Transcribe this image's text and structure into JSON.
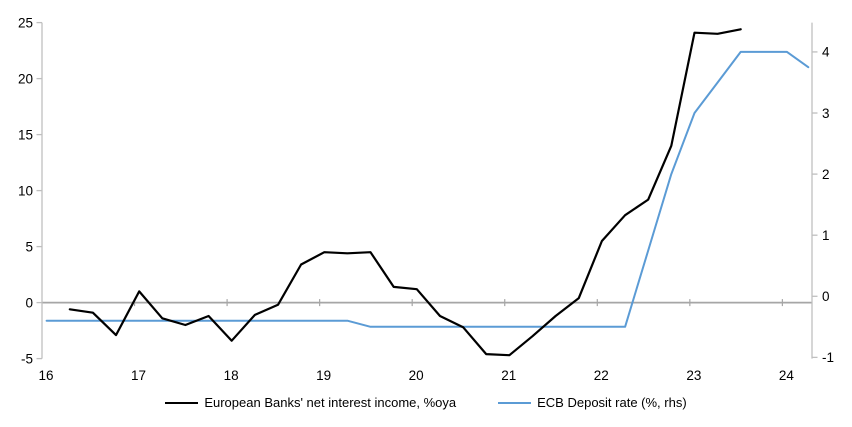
{
  "chart_data": {
    "type": "line",
    "title": "",
    "x_axis": {
      "tick_labels": [
        "16",
        "17",
        "18",
        "19",
        "20",
        "21",
        "22",
        "23",
        "24"
      ],
      "tick_values": [
        16,
        17,
        18,
        19,
        20,
        21,
        22,
        23,
        24
      ],
      "range": [
        16,
        24.32
      ],
      "ticks_on_zero_line": true
    },
    "left_axis": {
      "tick_labels": [
        "-5",
        "0",
        "5",
        "10",
        "15",
        "20",
        "25"
      ],
      "tick_values": [
        -5,
        0,
        5,
        10,
        15,
        20,
        25
      ],
      "range": [
        -5,
        25
      ]
    },
    "right_axis": {
      "tick_labels": [
        "-1",
        "0",
        "1",
        "2",
        "3",
        "4"
      ],
      "tick_values": [
        -1,
        0,
        1,
        2,
        3,
        4
      ],
      "range": [
        -1.02,
        4.48
      ]
    },
    "grid": "zero-line-only",
    "legend_position": "bottom-center",
    "series": [
      {
        "name": "European Banks' net interest income, %oya",
        "axis": "left",
        "color": "#000000",
        "stroke_width": 2.2,
        "points": [
          [
            16.3,
            -0.6
          ],
          [
            16.55,
            -0.9
          ],
          [
            16.8,
            -2.9
          ],
          [
            17.05,
            1.0
          ],
          [
            17.3,
            -1.4
          ],
          [
            17.55,
            -2.0
          ],
          [
            17.8,
            -1.2
          ],
          [
            18.05,
            -3.4
          ],
          [
            18.3,
            -1.1
          ],
          [
            18.55,
            -0.2
          ],
          [
            18.8,
            3.4
          ],
          [
            19.05,
            4.5
          ],
          [
            19.3,
            4.4
          ],
          [
            19.55,
            4.5
          ],
          [
            19.8,
            1.4
          ],
          [
            20.05,
            1.2
          ],
          [
            20.3,
            -1.2
          ],
          [
            20.55,
            -2.2
          ],
          [
            20.8,
            -4.6
          ],
          [
            21.05,
            -4.7
          ],
          [
            21.3,
            -3.0
          ],
          [
            21.55,
            -1.2
          ],
          [
            21.8,
            0.4
          ],
          [
            22.05,
            5.5
          ],
          [
            22.3,
            7.8
          ],
          [
            22.55,
            9.2
          ],
          [
            22.8,
            14.0
          ],
          [
            23.05,
            24.1
          ],
          [
            23.3,
            24.0
          ],
          [
            23.55,
            24.4
          ]
        ]
      },
      {
        "name": "ECB Deposit rate (%, rhs)",
        "axis": "right",
        "color": "#5B9BD5",
        "stroke_width": 2,
        "points": [
          [
            16.05,
            -0.4
          ],
          [
            19.3,
            -0.4
          ],
          [
            19.55,
            -0.5
          ],
          [
            22.3,
            -0.5
          ],
          [
            22.55,
            0.75
          ],
          [
            22.8,
            2.0
          ],
          [
            23.05,
            3.0
          ],
          [
            23.3,
            3.5
          ],
          [
            23.55,
            4.0
          ],
          [
            24.05,
            4.0
          ],
          [
            24.28,
            3.75
          ]
        ]
      }
    ],
    "colors": {
      "axis": "#BFBFBF",
      "zero_line": "#A6A6A6",
      "text": "#000000",
      "background": "#FFFFFF"
    }
  }
}
